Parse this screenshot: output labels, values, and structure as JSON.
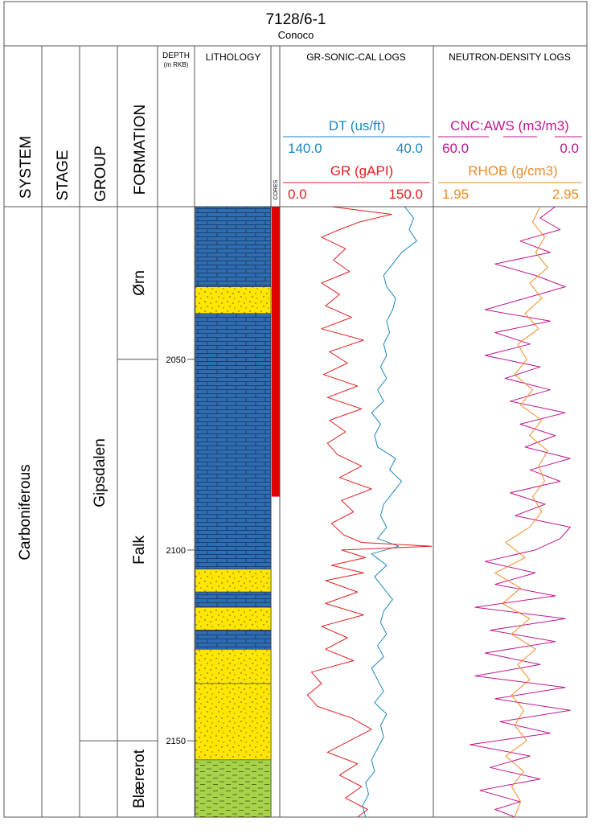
{
  "header": {
    "well": "7128/6-1",
    "operator": "Conoco"
  },
  "columns": {
    "system": "SYSTEM",
    "stage": "STAGE",
    "group": "GROUP",
    "formation": "FORMATION",
    "depth_title": "DEPTH",
    "depth_unit": "(m RKB)",
    "lithology": "LITHOLOGY",
    "cores": "CORES",
    "gr_sonic_cal": "GR-SONIC-CAL LOGS",
    "neutron_density": "NEUTRON-DENSITY LOGS"
  },
  "strat": {
    "system": "Carboniferous",
    "group": "Gipsdalen",
    "formations": [
      "Ørn",
      "Falk",
      "Blærerot"
    ]
  },
  "colors": {
    "dt": "#1a86c4",
    "gr": "#e02020",
    "cnc": "#c0168f",
    "rhob": "#f08a24",
    "limestone": "#2f6db3",
    "sandstone": "#ffe600",
    "shale": "#a8d24a",
    "core": "#e00000"
  },
  "chart_data": {
    "type": "line",
    "depth_ticks": [
      "2050",
      "2100",
      "2150"
    ],
    "depth_range": [
      2010,
      2170
    ],
    "formation_tops": [
      {
        "name": "Ørn",
        "top": 2010,
        "base": 2050
      },
      {
        "name": "Falk",
        "top": 2050,
        "base": 2150
      },
      {
        "name": "Blærerot",
        "top": 2150,
        "base": 2170
      }
    ],
    "cores": [
      {
        "top": 2010,
        "base": 2086
      }
    ],
    "lithology": [
      {
        "lith": "limestone",
        "top": 2010,
        "base": 2031
      },
      {
        "lith": "sandstone",
        "top": 2031,
        "base": 2038
      },
      {
        "lith": "limestone",
        "top": 2038,
        "base": 2105
      },
      {
        "lith": "sandstone",
        "top": 2105,
        "base": 2111
      },
      {
        "lith": "limestone",
        "top": 2111,
        "base": 2115
      },
      {
        "lith": "sandstone",
        "top": 2115,
        "base": 2121
      },
      {
        "lith": "limestone",
        "top": 2121,
        "base": 2126
      },
      {
        "lith": "sandstone",
        "top": 2126,
        "base": 2135
      },
      {
        "lith": "sandstone",
        "top": 2135,
        "base": 2155
      },
      {
        "lith": "shale",
        "top": 2155,
        "base": 2170
      }
    ],
    "tracks": [
      {
        "name": "GR-SONIC-CAL LOGS",
        "scales": [
          {
            "curve": "DT (us/ft)",
            "min": "140.0",
            "max": "40.0"
          },
          {
            "curve": "GR (gAPI)",
            "min": "0.0",
            "max": "150.0"
          }
        ]
      },
      {
        "name": "NEUTRON-DENSITY LOGS",
        "scales": [
          {
            "curve": "CNC:AWS (m3/m3)",
            "min": "60.0",
            "max": "0.0"
          },
          {
            "curve": "RHOB (g/cm3)",
            "min": "1.95",
            "max": "2.95"
          }
        ]
      }
    ],
    "series": [
      {
        "name": "DT (us/ft)",
        "x_range": [
          140,
          40
        ],
        "points": [
          [
            2010,
            58
          ],
          [
            2013,
            52
          ],
          [
            2016,
            55
          ],
          [
            2019,
            50
          ],
          [
            2022,
            60
          ],
          [
            2025,
            66
          ],
          [
            2028,
            72
          ],
          [
            2031,
            70
          ],
          [
            2034,
            64
          ],
          [
            2037,
            66
          ],
          [
            2040,
            70
          ],
          [
            2043,
            68
          ],
          [
            2046,
            72
          ],
          [
            2049,
            70
          ],
          [
            2052,
            74
          ],
          [
            2055,
            70
          ],
          [
            2058,
            76
          ],
          [
            2061,
            72
          ],
          [
            2064,
            80
          ],
          [
            2067,
            74
          ],
          [
            2070,
            78
          ],
          [
            2073,
            76
          ],
          [
            2076,
            64
          ],
          [
            2079,
            68
          ],
          [
            2082,
            60
          ],
          [
            2085,
            66
          ],
          [
            2088,
            72
          ],
          [
            2091,
            74
          ],
          [
            2094,
            70
          ],
          [
            2097,
            76
          ],
          [
            2099,
            62
          ],
          [
            2101,
            80
          ],
          [
            2104,
            70
          ],
          [
            2107,
            78
          ],
          [
            2110,
            72
          ],
          [
            2113,
            66
          ],
          [
            2116,
            72
          ],
          [
            2119,
            74
          ],
          [
            2122,
            70
          ],
          [
            2125,
            76
          ],
          [
            2128,
            72
          ],
          [
            2131,
            80
          ],
          [
            2134,
            76
          ],
          [
            2137,
            72
          ],
          [
            2140,
            78
          ],
          [
            2143,
            70
          ],
          [
            2146,
            74
          ],
          [
            2149,
            72
          ],
          [
            2152,
            76
          ],
          [
            2155,
            80
          ],
          [
            2158,
            78
          ],
          [
            2161,
            84
          ],
          [
            2164,
            82
          ],
          [
            2167,
            86
          ],
          [
            2170,
            84
          ]
        ]
      },
      {
        "name": "GR (gAPI)",
        "x_range": [
          0,
          150
        ],
        "points": [
          [
            2010,
            50
          ],
          [
            2012,
            110
          ],
          [
            2014,
            78
          ],
          [
            2016,
            58
          ],
          [
            2018,
            40
          ],
          [
            2021,
            64
          ],
          [
            2024,
            52
          ],
          [
            2027,
            68
          ],
          [
            2030,
            40
          ],
          [
            2033,
            58
          ],
          [
            2036,
            44
          ],
          [
            2039,
            70
          ],
          [
            2042,
            40
          ],
          [
            2045,
            82
          ],
          [
            2048,
            48
          ],
          [
            2051,
            66
          ],
          [
            2054,
            42
          ],
          [
            2057,
            76
          ],
          [
            2060,
            46
          ],
          [
            2063,
            80
          ],
          [
            2066,
            48
          ],
          [
            2069,
            64
          ],
          [
            2072,
            46
          ],
          [
            2075,
            56
          ],
          [
            2078,
            80
          ],
          [
            2081,
            58
          ],
          [
            2084,
            90
          ],
          [
            2087,
            60
          ],
          [
            2090,
            72
          ],
          [
            2093,
            50
          ],
          [
            2096,
            62
          ],
          [
            2098,
            80
          ],
          [
            2099,
            150
          ],
          [
            2100,
            60
          ],
          [
            2102,
            84
          ],
          [
            2104,
            50
          ],
          [
            2106,
            82
          ],
          [
            2108,
            44
          ],
          [
            2111,
            76
          ],
          [
            2114,
            44
          ],
          [
            2117,
            82
          ],
          [
            2120,
            40
          ],
          [
            2123,
            66
          ],
          [
            2126,
            44
          ],
          [
            2129,
            72
          ],
          [
            2132,
            30
          ],
          [
            2135,
            40
          ],
          [
            2138,
            26
          ],
          [
            2141,
            36
          ],
          [
            2144,
            70
          ],
          [
            2147,
            90
          ],
          [
            2150,
            68
          ],
          [
            2153,
            46
          ],
          [
            2156,
            76
          ],
          [
            2159,
            58
          ],
          [
            2162,
            80
          ],
          [
            2165,
            64
          ],
          [
            2168,
            86
          ],
          [
            2170,
            76
          ]
        ]
      },
      {
        "name": "CNC:AWS (m3/m3)",
        "x_range": [
          60,
          0
        ],
        "points": [
          [
            2010,
            12
          ],
          [
            2013,
            18
          ],
          [
            2016,
            10
          ],
          [
            2019,
            26
          ],
          [
            2022,
            14
          ],
          [
            2025,
            36
          ],
          [
            2028,
            20
          ],
          [
            2031,
            8
          ],
          [
            2034,
            24
          ],
          [
            2037,
            40
          ],
          [
            2040,
            14
          ],
          [
            2043,
            36
          ],
          [
            2046,
            22
          ],
          [
            2049,
            40
          ],
          [
            2052,
            18
          ],
          [
            2055,
            32
          ],
          [
            2058,
            14
          ],
          [
            2061,
            30
          ],
          [
            2064,
            8
          ],
          [
            2067,
            26
          ],
          [
            2070,
            12
          ],
          [
            2073,
            24
          ],
          [
            2076,
            6
          ],
          [
            2079,
            22
          ],
          [
            2082,
            10
          ],
          [
            2085,
            30
          ],
          [
            2088,
            16
          ],
          [
            2091,
            28
          ],
          [
            2094,
            6
          ],
          [
            2097,
            10
          ],
          [
            2100,
            20
          ],
          [
            2103,
            40
          ],
          [
            2106,
            20
          ],
          [
            2109,
            36
          ],
          [
            2112,
            12
          ],
          [
            2115,
            44
          ],
          [
            2118,
            8
          ],
          [
            2121,
            38
          ],
          [
            2124,
            12
          ],
          [
            2127,
            40
          ],
          [
            2130,
            18
          ],
          [
            2133,
            44
          ],
          [
            2136,
            8
          ],
          [
            2139,
            36
          ],
          [
            2142,
            6
          ],
          [
            2145,
            34
          ],
          [
            2148,
            14
          ],
          [
            2151,
            46
          ],
          [
            2154,
            22
          ],
          [
            2157,
            38
          ],
          [
            2160,
            18
          ],
          [
            2163,
            42
          ],
          [
            2166,
            26
          ],
          [
            2168,
            36
          ],
          [
            2170,
            28
          ]
        ]
      },
      {
        "name": "RHOB (g/cm3)",
        "x_range": [
          1.95,
          2.95
        ],
        "points": [
          [
            2010,
            2.65
          ],
          [
            2014,
            2.6
          ],
          [
            2018,
            2.68
          ],
          [
            2022,
            2.62
          ],
          [
            2026,
            2.7
          ],
          [
            2030,
            2.58
          ],
          [
            2034,
            2.66
          ],
          [
            2038,
            2.55
          ],
          [
            2042,
            2.64
          ],
          [
            2046,
            2.5
          ],
          [
            2050,
            2.56
          ],
          [
            2054,
            2.48
          ],
          [
            2058,
            2.6
          ],
          [
            2062,
            2.52
          ],
          [
            2066,
            2.66
          ],
          [
            2070,
            2.58
          ],
          [
            2074,
            2.7
          ],
          [
            2078,
            2.64
          ],
          [
            2082,
            2.68
          ],
          [
            2086,
            2.6
          ],
          [
            2090,
            2.66
          ],
          [
            2094,
            2.58
          ],
          [
            2098,
            2.42
          ],
          [
            2102,
            2.55
          ],
          [
            2106,
            2.35
          ],
          [
            2110,
            2.52
          ],
          [
            2114,
            2.4
          ],
          [
            2118,
            2.58
          ],
          [
            2122,
            2.46
          ],
          [
            2126,
            2.62
          ],
          [
            2130,
            2.5
          ],
          [
            2134,
            2.58
          ],
          [
            2138,
            2.46
          ],
          [
            2142,
            2.54
          ],
          [
            2146,
            2.48
          ],
          [
            2150,
            2.56
          ],
          [
            2154,
            2.42
          ],
          [
            2158,
            2.54
          ],
          [
            2162,
            2.46
          ],
          [
            2166,
            2.52
          ],
          [
            2170,
            2.48
          ]
        ]
      }
    ]
  }
}
